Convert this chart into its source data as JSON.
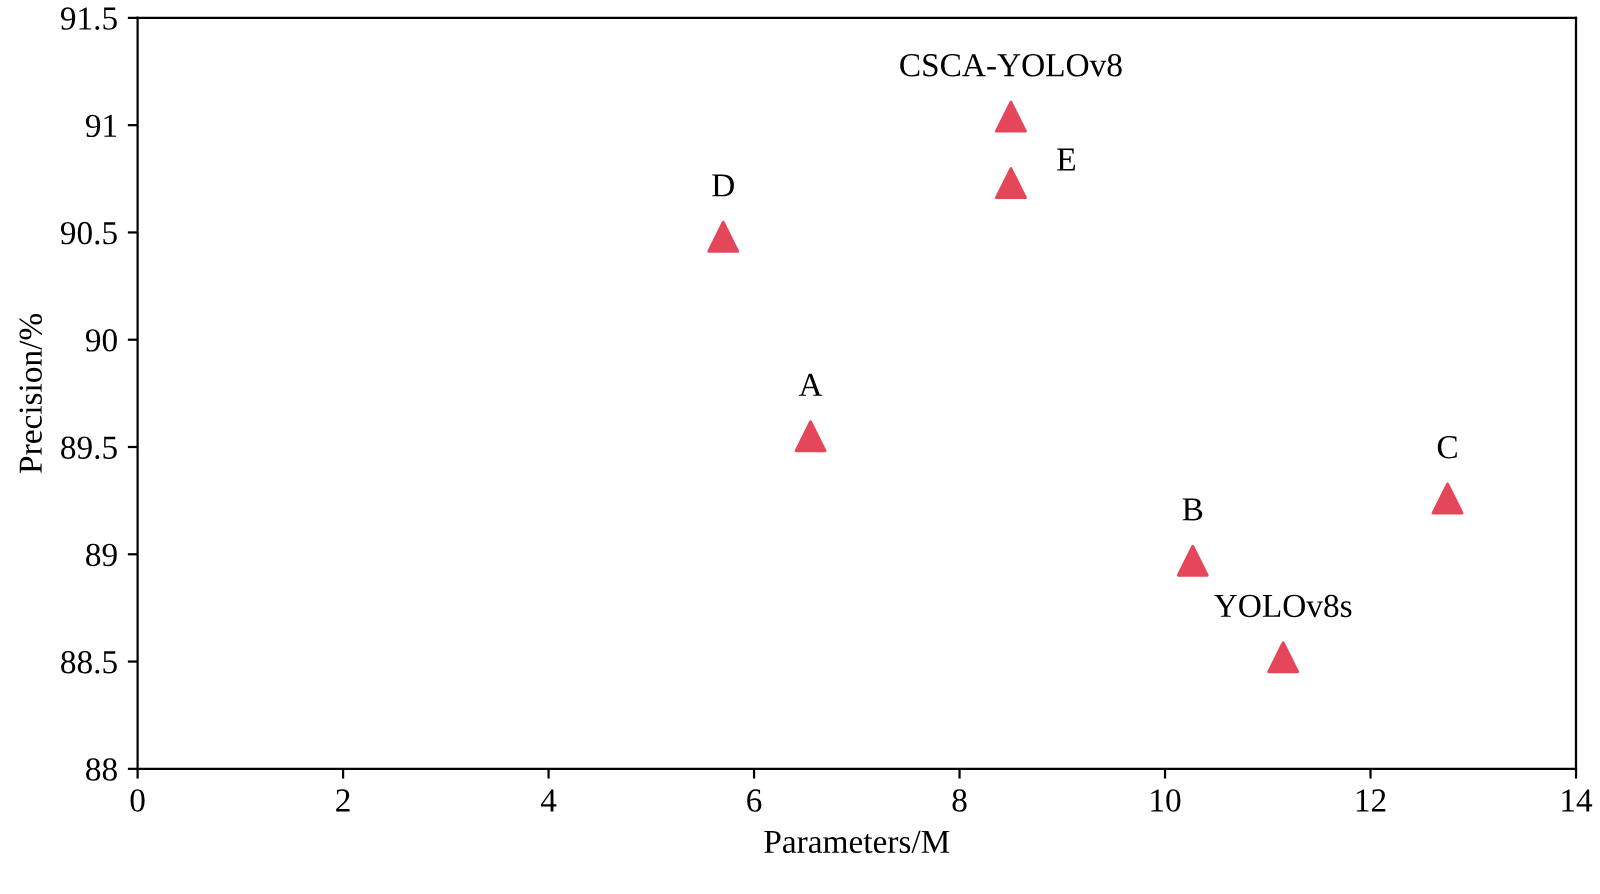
{
  "chart_data": {
    "type": "scatter",
    "xlabel": "Parameters/M",
    "ylabel": "Precision/%",
    "x": [
      5.7,
      6.55,
      8.5,
      8.5,
      10.27,
      11.15,
      12.75
    ],
    "series": [
      {
        "color": "#e5475a",
        "values": [
          90.48,
          89.55,
          91.04,
          90.73,
          88.97,
          88.52,
          89.26
        ]
      }
    ],
    "marker": "triangle",
    "annotations": [
      {
        "text": "D",
        "x": 5.7,
        "y": 90.48
      },
      {
        "text": "A",
        "x": 6.55,
        "y": 89.55
      },
      {
        "text": "CSCA-YOLOv8",
        "x": 8.5,
        "y": 91.04
      },
      {
        "text": "E",
        "x": 8.5,
        "y": 90.73
      },
      {
        "text": "B",
        "x": 10.27,
        "y": 88.97
      },
      {
        "text": "YOLOv8s",
        "x": 11.15,
        "y": 88.52
      },
      {
        "text": "C",
        "x": 12.75,
        "y": 89.26
      }
    ],
    "xlim": [
      0,
      14
    ],
    "xticks": [
      0,
      2,
      4,
      6,
      8,
      10,
      12,
      14
    ],
    "ylim": [
      88,
      91.5
    ],
    "yticks": [
      88,
      88.5,
      89,
      89.5,
      90,
      90.5,
      91,
      91.5
    ],
    "grid": false,
    "legend": false
  }
}
